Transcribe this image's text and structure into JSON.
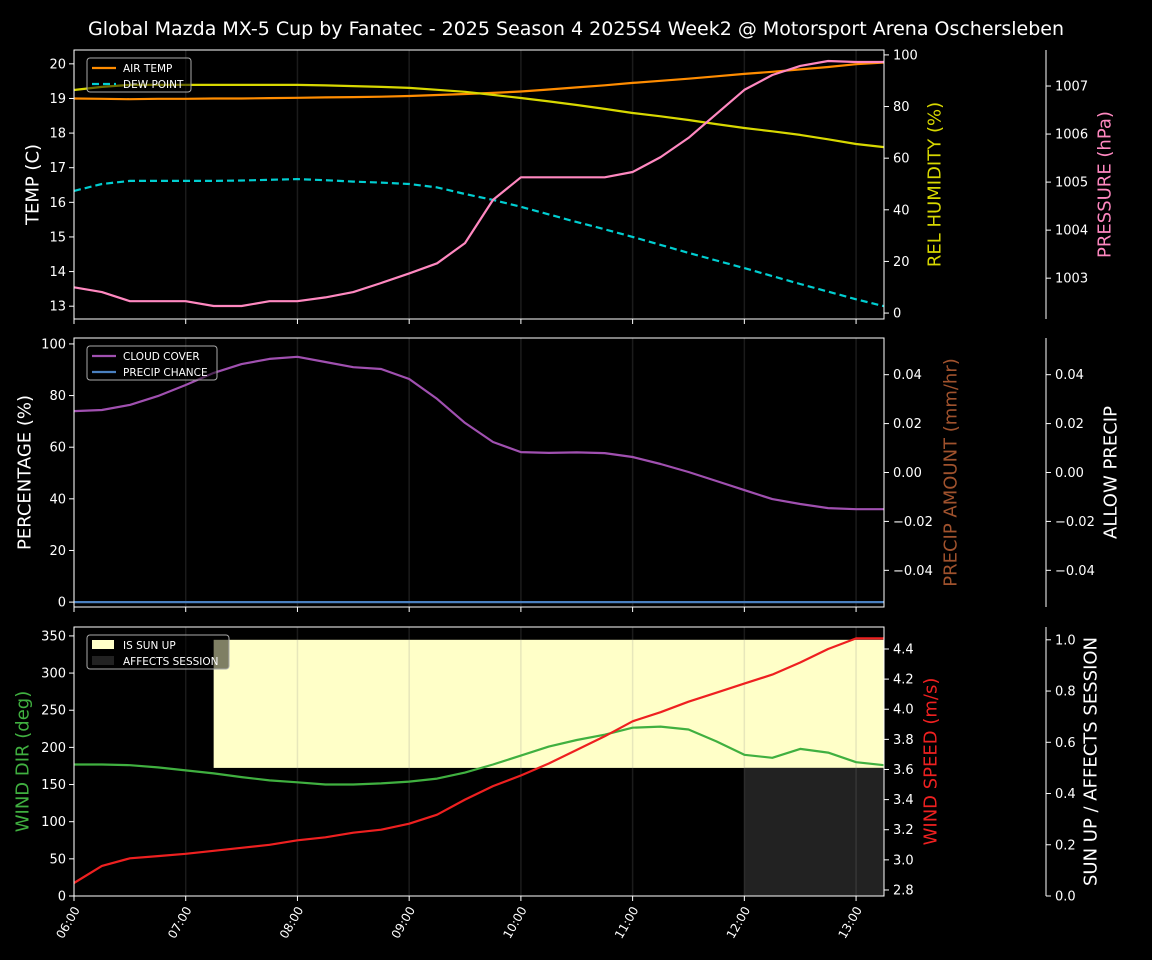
{
  "title": "Global Mazda MX-5 Cup by Fanatec - 2025 Season 4 2025S4 Week2 @ Motorsport Arena Oschersleben",
  "chart_data": [
    {
      "type": "line",
      "x": [
        "06:00",
        "06:15",
        "06:30",
        "06:45",
        "07:00",
        "07:15",
        "07:30",
        "07:45",
        "08:00",
        "08:15",
        "08:30",
        "08:45",
        "09:00",
        "09:15",
        "09:30",
        "09:45",
        "10:00",
        "10:15",
        "10:30",
        "10:45",
        "11:00",
        "11:15",
        "11:30",
        "11:45",
        "12:00",
        "12:15",
        "12:30",
        "12:45",
        "13:00",
        "13:15"
      ],
      "x_tick_labels": [
        "06:00",
        "07:00",
        "08:00",
        "09:00",
        "10:00",
        "11:00",
        "12:00",
        "13:00"
      ],
      "grid": "vertical at hours",
      "legend_placement": "upper-left",
      "axes": [
        {
          "side": "left",
          "label": "TEMP (C)",
          "color": "#ffffff",
          "ylim": [
            12.63,
            20.4
          ],
          "ticks": [
            "13",
            "14",
            "15",
            "16",
            "17",
            "18",
            "19",
            "20"
          ]
        },
        {
          "side": "right",
          "label": "REL HUMIDITY (%)",
          "color": "#d8d800",
          "ylim": [
            -2.3,
            101.9
          ],
          "ticks": [
            "0",
            "20",
            "40",
            "60",
            "80",
            "100"
          ]
        },
        {
          "side": "right-outer",
          "label": "PRESSURE (hPa)",
          "color": "#ff88c0",
          "ylim": [
            1002.15,
            1007.75
          ],
          "ticks": [
            "1003",
            "1004",
            "1005",
            "1006",
            "1007"
          ]
        }
      ],
      "series": [
        {
          "name": "AIR TEMP",
          "axis": 0,
          "color": "#ff8c00",
          "dash": false,
          "legend": true,
          "values": [
            19.0,
            18.99,
            18.98,
            18.99,
            18.99,
            19.0,
            19.0,
            19.01,
            19.02,
            19.03,
            19.04,
            19.05,
            19.07,
            19.1,
            19.13,
            19.16,
            19.2,
            19.26,
            19.32,
            19.38,
            19.45,
            19.51,
            19.57,
            19.64,
            19.71,
            19.77,
            19.84,
            19.91,
            19.99,
            20.04
          ]
        },
        {
          "name": "DEW POINT",
          "axis": 0,
          "color": "#00ced1",
          "dash": true,
          "legend": true,
          "values": [
            16.33,
            16.53,
            16.62,
            16.62,
            16.62,
            16.62,
            16.63,
            16.65,
            16.67,
            16.64,
            16.6,
            16.57,
            16.53,
            16.43,
            16.24,
            16.07,
            15.87,
            15.65,
            15.43,
            15.22,
            15.0,
            14.77,
            14.54,
            14.32,
            14.1,
            13.87,
            13.64,
            13.42,
            13.2,
            13.0
          ]
        },
        {
          "axis": 1,
          "color": "#d8d800",
          "dash": false,
          "legend": false,
          "values": [
            86.4,
            87.6,
            88.4,
            88.4,
            88.4,
            88.4,
            88.4,
            88.4,
            88.4,
            88.2,
            87.9,
            87.6,
            87.2,
            86.5,
            85.7,
            84.5,
            83.3,
            82.0,
            80.6,
            79.1,
            77.5,
            76.2,
            74.8,
            73.2,
            71.7,
            70.4,
            69.0,
            67.3,
            65.5,
            64.3
          ]
        },
        {
          "axis": 2,
          "color": "#ff88c0",
          "dash": false,
          "legend": false,
          "values": [
            1002.81,
            1002.71,
            1002.52,
            1002.52,
            1002.52,
            1002.42,
            1002.42,
            1002.52,
            1002.52,
            1002.6,
            1002.71,
            1002.9,
            1003.1,
            1003.31,
            1003.73,
            1004.63,
            1005.1,
            1005.1,
            1005.1,
            1005.1,
            1005.21,
            1005.52,
            1005.92,
            1006.42,
            1006.92,
            1007.23,
            1007.42,
            1007.52,
            1007.5,
            1007.5
          ]
        }
      ]
    },
    {
      "type": "line",
      "legend_placement": "upper-left",
      "axes": [
        {
          "side": "left",
          "label": "PERCENTAGE (%)",
          "color": "#ffffff",
          "ylim": [
            -1.9,
            102.3
          ],
          "ticks": [
            "0",
            "20",
            "40",
            "60",
            "80",
            "100"
          ]
        },
        {
          "side": "right",
          "label": "PRECIP AMOUNT (mm/hr)",
          "color": "#a0522d",
          "ylim": [
            -0.055,
            0.055
          ],
          "ticks": [
            "−0.04",
            "−0.02",
            "0.00",
            "0.02",
            "0.04"
          ]
        },
        {
          "side": "right-outer",
          "label": "ALLOW PRECIP",
          "color": "#ffffff",
          "ylim": [
            -0.055,
            0.055
          ],
          "ticks": [
            "−0.04",
            "−0.02",
            "0.00",
            "0.02",
            "0.04"
          ]
        }
      ],
      "series": [
        {
          "name": "CLOUD COVER",
          "axis": 0,
          "color": "#a050b0",
          "dash": false,
          "legend": true,
          "values": [
            74,
            74.4,
            76.4,
            79.8,
            84.1,
            88.8,
            92.2,
            94.2,
            95,
            93,
            91,
            90.3,
            86.4,
            78.7,
            69.4,
            62,
            58.1,
            57.8,
            58,
            57.7,
            56.2,
            53.5,
            50.4,
            46.9,
            43.4,
            39.9,
            38,
            36.4,
            36,
            36
          ]
        },
        {
          "name": "PRECIP CHANCE",
          "axis": 0,
          "color": "#4a80c0",
          "dash": false,
          "legend": true,
          "values": [
            0,
            0,
            0,
            0,
            0,
            0,
            0,
            0,
            0,
            0,
            0,
            0,
            0,
            0,
            0,
            0,
            0,
            0,
            0,
            0,
            0,
            0,
            0,
            0,
            0,
            0,
            0,
            0,
            0,
            0
          ]
        }
      ]
    },
    {
      "type": "line",
      "legend_placement": "upper-left",
      "axes": [
        {
          "side": "left",
          "label": "WIND DIR (deg)",
          "color": "#40b040",
          "ylim": [
            0,
            362
          ],
          "ticks": [
            "0",
            "50",
            "100",
            "150",
            "200",
            "250",
            "300",
            "350"
          ]
        },
        {
          "side": "right",
          "label": "WIND SPEED (m/s)",
          "color": "#ee2020",
          "ylim": [
            2.76,
            4.546
          ],
          "ticks": [
            "2.8",
            "3.0",
            "3.2",
            "3.4",
            "3.6",
            "3.8",
            "4.0",
            "4.2",
            "4.4"
          ]
        },
        {
          "side": "right-outer",
          "label": "SUN UP / AFFECTS SESSION",
          "color": "#ffffff",
          "ylim": [
            0,
            1.05
          ],
          "ticks": [
            "0.0",
            "0.2",
            "0.4",
            "0.6",
            "0.8",
            "1.0"
          ]
        }
      ],
      "areas": [
        {
          "name": "IS SUN UP",
          "color": "#ffffc8",
          "from": "07:15",
          "to": "13:15",
          "range": [
            0.5,
            1.0
          ]
        },
        {
          "name": "AFFECTS SESSION",
          "color": "#222222",
          "from": "12:00",
          "to": "13:15",
          "range": [
            0,
            0.5
          ]
        }
      ],
      "series": [
        {
          "axis": 0,
          "color": "#40b040",
          "dash": false,
          "legend": false,
          "values": [
            177,
            177,
            176,
            173,
            169,
            165,
            160,
            155.5,
            153,
            150,
            150,
            151.5,
            154,
            158,
            166,
            177,
            189,
            201,
            210,
            217,
            226.5,
            228,
            224,
            208,
            190,
            186,
            198,
            193,
            180,
            176
          ]
        },
        {
          "axis": 1,
          "color": "#ee2020",
          "dash": false,
          "legend": false,
          "values": [
            2.846,
            2.96,
            3.01,
            3.025,
            3.04,
            3.06,
            3.08,
            3.1,
            3.13,
            3.15,
            3.18,
            3.2,
            3.24,
            3.3,
            3.4,
            3.49,
            3.56,
            3.64,
            3.73,
            3.82,
            3.92,
            3.98,
            4.05,
            4.11,
            4.17,
            4.23,
            4.31,
            4.4,
            4.47,
            4.47
          ]
        }
      ]
    }
  ]
}
